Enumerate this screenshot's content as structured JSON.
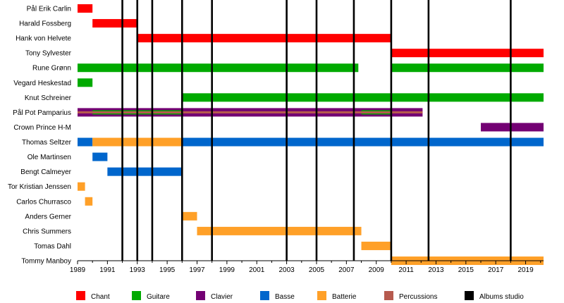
{
  "chart_data": {
    "type": "timeline",
    "x_axis": {
      "min": 1989,
      "max": 2020.2,
      "tick_labels": [
        "1989",
        "1991",
        "1993",
        "1995",
        "1997",
        "1999",
        "2001",
        "2003",
        "2005",
        "2007",
        "2009",
        "2011",
        "2013",
        "2015",
        "2017",
        "2019"
      ],
      "minor_ticks": [
        1990,
        1992,
        1994,
        1996,
        1998,
        2000,
        2002,
        2004,
        2006,
        2008,
        2010,
        2012,
        2014,
        2016,
        2018,
        2020
      ]
    },
    "colors": {
      "Chant": "#ff0000",
      "Guitare": "#00aa00",
      "Clavier": "#730073",
      "Basse": "#0066cc",
      "Batterie": "#ffa028",
      "Percussions": "#b65a4e",
      "Albums studio": "#000000"
    },
    "members": [
      {
        "name": "Pål Erik Carlin",
        "roles": [
          {
            "role": "Chant",
            "start": 1989,
            "end": 1990
          }
        ]
      },
      {
        "name": "Harald Fossberg",
        "roles": [
          {
            "role": "Chant",
            "start": 1990,
            "end": 1993
          }
        ]
      },
      {
        "name": "Hank von Helvete",
        "roles": [
          {
            "role": "Chant",
            "start": 1993,
            "end": 2010
          }
        ]
      },
      {
        "name": "Tony Sylvester",
        "roles": [
          {
            "role": "Chant",
            "start": 2010,
            "end": 2020.2
          }
        ]
      },
      {
        "name": "Rune Grønn",
        "roles": [
          {
            "role": "Guitare",
            "start": 1989,
            "end": 2007.8
          },
          {
            "role": "Guitare",
            "start": 2010,
            "end": 2020.2
          }
        ]
      },
      {
        "name": "Vegard Heskestad",
        "roles": [
          {
            "role": "Guitare",
            "start": 1989,
            "end": 1990
          }
        ]
      },
      {
        "name": "Knut Schreiner",
        "roles": [
          {
            "role": "Guitare",
            "start": 1996,
            "end": 2020.2
          }
        ]
      },
      {
        "name": "Pål Pot Pamparius",
        "roles": [
          {
            "role": "Clavier",
            "start": 1989,
            "end": 2012.1
          },
          {
            "role": "Percussions",
            "start": 1989,
            "end": 2012.1
          },
          {
            "role": "Guitare",
            "start": 1990,
            "end": 1996
          },
          {
            "role": "Guitare",
            "start": 2008,
            "end": 2010
          }
        ]
      },
      {
        "name": "Crown Prince H-M",
        "roles": [
          {
            "role": "Clavier",
            "start": 2016,
            "end": 2020.2
          }
        ]
      },
      {
        "name": "Thomas Seltzer",
        "roles": [
          {
            "role": "Basse",
            "start": 1989,
            "end": 1990
          },
          {
            "role": "Batterie",
            "start": 1990,
            "end": 1996
          },
          {
            "role": "Basse",
            "start": 1996,
            "end": 2020.2
          }
        ]
      },
      {
        "name": "Ole Martinsen",
        "roles": [
          {
            "role": "Basse",
            "start": 1990,
            "end": 1991
          }
        ]
      },
      {
        "name": "Bengt Calmeyer",
        "roles": [
          {
            "role": "Basse",
            "start": 1991,
            "end": 1996
          }
        ]
      },
      {
        "name": "Tor Kristian Jenssen",
        "roles": [
          {
            "role": "Batterie",
            "start": 1989,
            "end": 1989.5
          }
        ]
      },
      {
        "name": "Carlos Churrasco",
        "roles": [
          {
            "role": "Batterie",
            "start": 1989.5,
            "end": 1990
          }
        ]
      },
      {
        "name": "Anders Gerner",
        "roles": [
          {
            "role": "Batterie",
            "start": 1996,
            "end": 1997
          }
        ]
      },
      {
        "name": "Chris Summers",
        "roles": [
          {
            "role": "Batterie",
            "start": 1997,
            "end": 2008
          }
        ]
      },
      {
        "name": "Tomas Dahl",
        "roles": [
          {
            "role": "Batterie",
            "start": 2008,
            "end": 2010
          }
        ]
      },
      {
        "name": "Tommy Manboy",
        "roles": [
          {
            "role": "Batterie",
            "start": 2010,
            "end": 2020.2
          }
        ]
      }
    ],
    "albums": [
      1992.0,
      1993.0,
      1994.0,
      1996.0,
      1998.0,
      2003.0,
      2005.0,
      2007.5,
      2010.0,
      2012.5,
      2018.0
    ],
    "legend": [
      "Chant",
      "Guitare",
      "Clavier",
      "Basse",
      "Batterie",
      "Percussions",
      "Albums studio"
    ]
  }
}
